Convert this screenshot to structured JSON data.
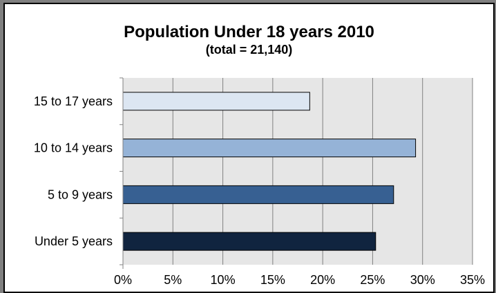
{
  "chart_data": {
    "type": "bar",
    "orientation": "horizontal",
    "title": "Population Under 18 years 2010",
    "subtitle": "(total = 21,140)",
    "xlabel": "",
    "ylabel": "",
    "categories": [
      "15 to 17 years",
      "10 to 14 years",
      "5 to 9 years",
      "Under 5 years"
    ],
    "values": [
      18.7,
      29.3,
      27.1,
      25.3
    ],
    "value_unit": "%",
    "xlim": [
      0,
      35
    ],
    "ticks": [
      0,
      5,
      10,
      15,
      20,
      25,
      30,
      35
    ],
    "tick_labels": [
      "0%",
      "5%",
      "10%",
      "15%",
      "20%",
      "25%",
      "30%",
      "35%"
    ],
    "grid": true,
    "legend": "none",
    "colors": {
      "bars": [
        "#dce6f2",
        "#95b3d7",
        "#376092",
        "#10243f"
      ],
      "plot_background": "#e6e6e6",
      "gridline": "#808080",
      "frame_background": "#ffffff",
      "outer_background": "#808080"
    }
  }
}
